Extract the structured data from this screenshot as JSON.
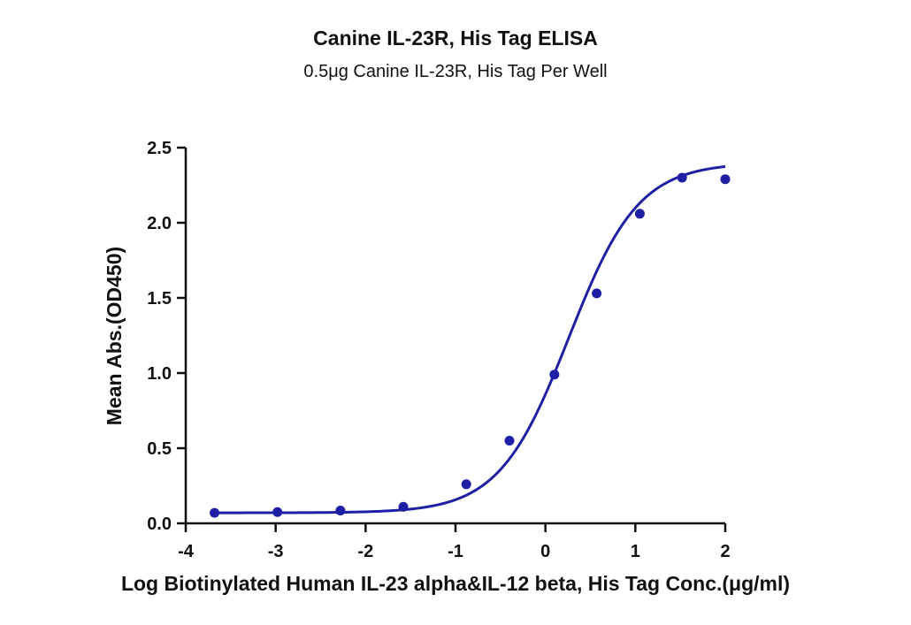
{
  "chart_data": {
    "type": "scatter",
    "title": "Canine IL-23R, His Tag ELISA",
    "subtitle": "0.5μg Canine IL-23R, His Tag Per Well",
    "xlabel": "Log Biotinylated Human IL-23 alpha&IL-12 beta, His Tag Conc.(μg/ml)",
    "ylabel": "Mean Abs.(OD450)",
    "xlim": [
      -4,
      2
    ],
    "ylim": [
      0,
      2.5
    ],
    "x_ticks": [
      "-4",
      "-3",
      "-2",
      "-1",
      "0",
      "1",
      "2"
    ],
    "y_ticks": [
      "0.0",
      "0.5",
      "1.0",
      "1.5",
      "2.0",
      "2.5"
    ],
    "grid": false,
    "legend": "none",
    "color": "#1f1fa6",
    "series": [
      {
        "points": [
          {
            "x": -3.68,
            "y": 0.07
          },
          {
            "x": -2.98,
            "y": 0.075
          },
          {
            "x": -2.28,
            "y": 0.085
          },
          {
            "x": -1.58,
            "y": 0.11
          },
          {
            "x": -0.88,
            "y": 0.26
          },
          {
            "x": -0.4,
            "y": 0.55
          },
          {
            "x": 0.1,
            "y": 0.99
          },
          {
            "x": 0.57,
            "y": 1.53
          },
          {
            "x": 1.05,
            "y": 2.06
          },
          {
            "x": 1.52,
            "y": 2.3
          },
          {
            "x": 2.0,
            "y": 2.29
          }
        ],
        "fit": {
          "model": "4PL",
          "bottom": 0.07,
          "top": 2.4,
          "logEC50": 0.26,
          "hill": 1.12,
          "x_range": [
            -3.68,
            2.0
          ]
        }
      }
    ]
  }
}
